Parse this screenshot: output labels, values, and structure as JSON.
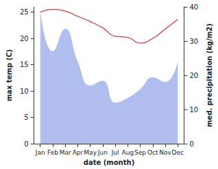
{
  "chart_data": {
    "type": "line",
    "categories": [
      "Jan",
      "Feb",
      "Mar",
      "Apr",
      "May",
      "Jun",
      "Jul",
      "Aug",
      "Sep",
      "Oct",
      "Nov",
      "Dec"
    ],
    "x_label": "date (month)",
    "y_label": "max temp (C)",
    "y2_label": "med. precipitation (kg/m2)",
    "ylim": [
      0,
      26
    ],
    "yticks": [
      0,
      5,
      10,
      15,
      20,
      25
    ],
    "y2lim": [
      0,
      40
    ],
    "y2ticks": [
      0,
      10,
      20,
      30,
      40
    ],
    "grid": false,
    "series": [
      {
        "name": "med. precipitation (kg/m2)",
        "type": "area",
        "axis": "y2",
        "color": "#b0bef0",
        "values": [
          39,
          27,
          33.6,
          24,
          17,
          18.4,
          12,
          13.4,
          16,
          19.4,
          18,
          24
        ]
      },
      {
        "name": "max temp (C)",
        "type": "line",
        "color": "#cd5c5c",
        "values": [
          25.0,
          25.5,
          25.2,
          24.2,
          23.2,
          22.0,
          20.4,
          20.2,
          19.1,
          20.0,
          21.8,
          23.6
        ]
      }
    ]
  }
}
